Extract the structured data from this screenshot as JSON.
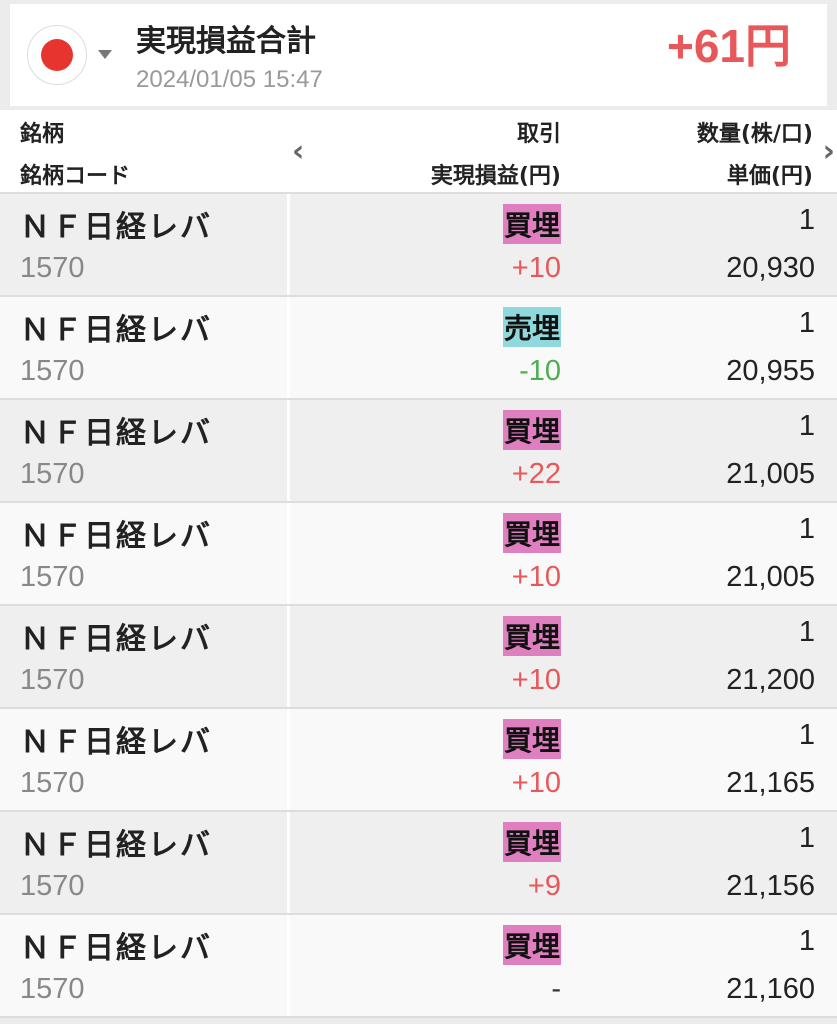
{
  "summary": {
    "title": "実現損益合計",
    "datetime": "2024/01/05 15:47",
    "total": "+61円",
    "market_icon": "japan-flag-icon"
  },
  "header": {
    "col1_line1": "銘柄",
    "col1_line2": "銘柄コード",
    "col2_line1": "取引",
    "col2_line2": "実現損益(円)",
    "col3_line1": "数量(株/口)",
    "col3_line2": "単価(円)",
    "prev": "‹",
    "next": "›"
  },
  "colors": {
    "buy_close": "#e07fc0",
    "sell_close": "#8fd8dc",
    "profit": "#e8585a",
    "loss": "#4caf50",
    "neutral": "#333333"
  },
  "rows": [
    {
      "name": "ＮＦ日経レバ",
      "code": "1570",
      "trade": "買埋",
      "pl": "+10",
      "qty": "1",
      "price": "20,930"
    },
    {
      "name": "ＮＦ日経レバ",
      "code": "1570",
      "trade": "売埋",
      "pl": "-10",
      "qty": "1",
      "price": "20,955"
    },
    {
      "name": "ＮＦ日経レバ",
      "code": "1570",
      "trade": "買埋",
      "pl": "+22",
      "qty": "1",
      "price": "21,005"
    },
    {
      "name": "ＮＦ日経レバ",
      "code": "1570",
      "trade": "買埋",
      "pl": "+10",
      "qty": "1",
      "price": "21,005"
    },
    {
      "name": "ＮＦ日経レバ",
      "code": "1570",
      "trade": "買埋",
      "pl": "+10",
      "qty": "1",
      "price": "21,200"
    },
    {
      "name": "ＮＦ日経レバ",
      "code": "1570",
      "trade": "買埋",
      "pl": "+10",
      "qty": "1",
      "price": "21,165"
    },
    {
      "name": "ＮＦ日経レバ",
      "code": "1570",
      "trade": "買埋",
      "pl": "+9",
      "qty": "1",
      "price": "21,156"
    },
    {
      "name": "ＮＦ日経レバ",
      "code": "1570",
      "trade": "買埋",
      "pl": "-",
      "qty": "1",
      "price": "21,160"
    }
  ]
}
